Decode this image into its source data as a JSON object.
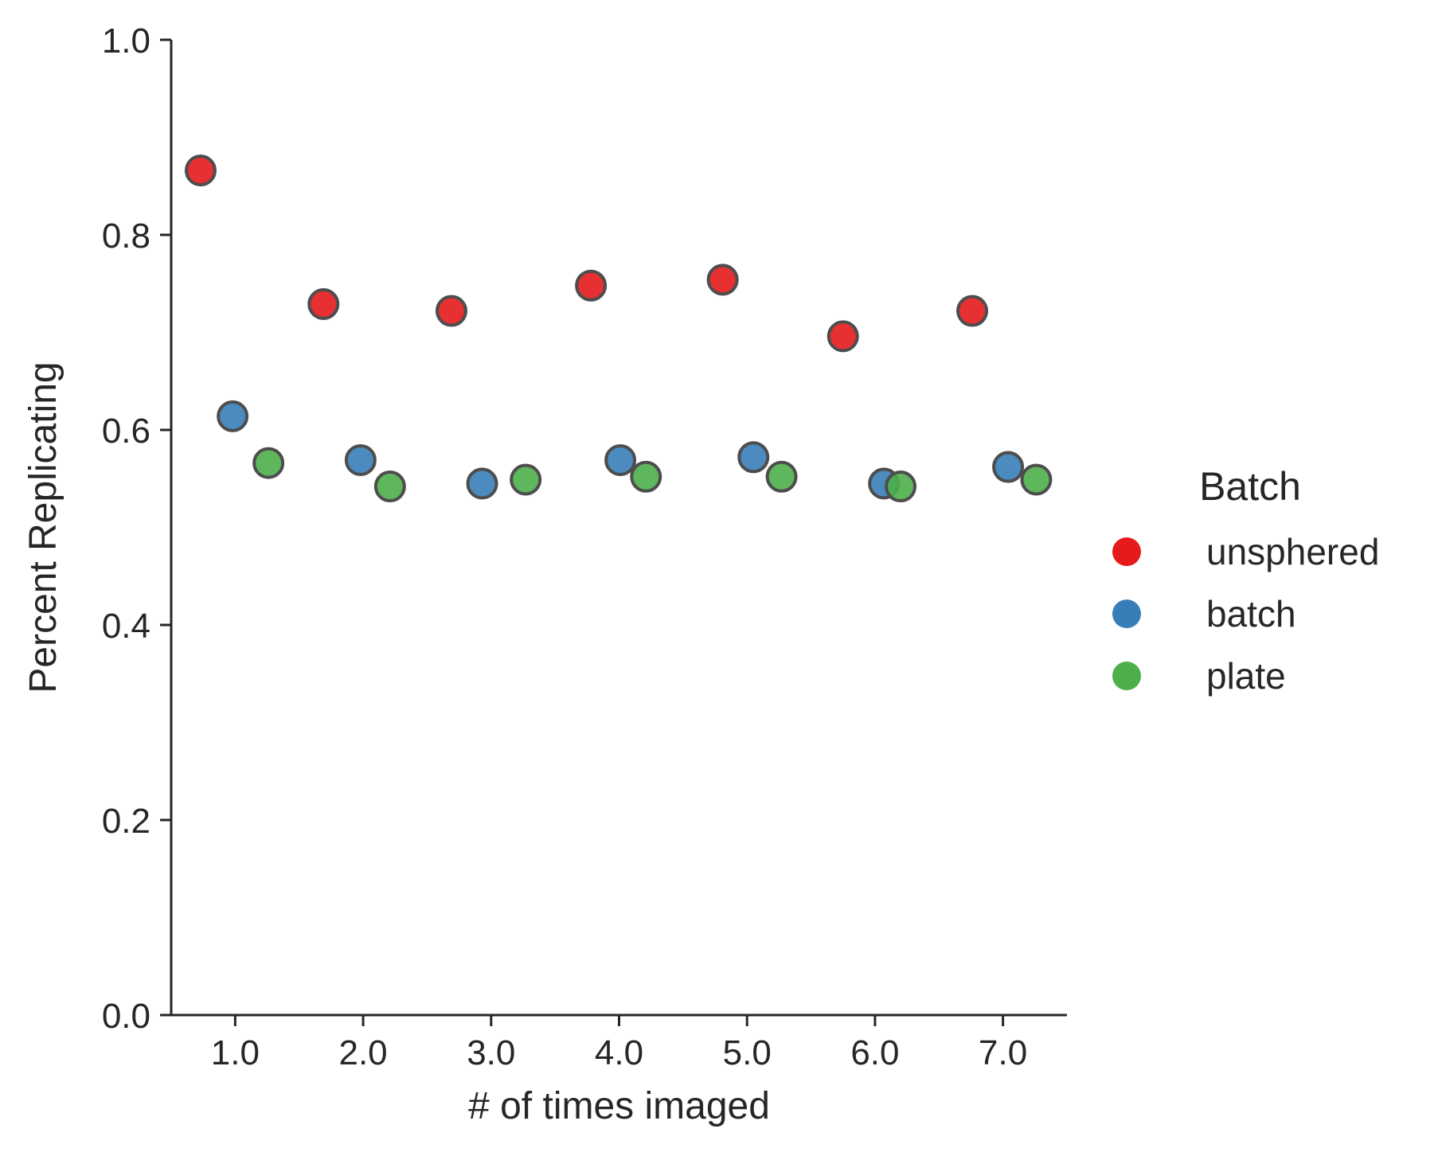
{
  "chart_data": {
    "type": "scatter",
    "title": "",
    "xlabel": "# of times imaged",
    "ylabel": "Percent Replicating",
    "xlim": [
      0.5,
      7.5
    ],
    "ylim": [
      0.0,
      1.0
    ],
    "xticks": [
      1.0,
      2.0,
      3.0,
      4.0,
      5.0,
      6.0,
      7.0
    ],
    "xtick_labels": [
      "1.0",
      "2.0",
      "3.0",
      "4.0",
      "5.0",
      "6.0",
      "7.0"
    ],
    "yticks": [
      0.0,
      0.2,
      0.4,
      0.6,
      0.8,
      1.0
    ],
    "ytick_labels": [
      "0.0",
      "0.2",
      "0.4",
      "0.6",
      "0.8",
      "1.0"
    ],
    "grid": false,
    "legend": {
      "title": "Batch",
      "placement": "right"
    },
    "series": [
      {
        "name": "unsphered",
        "color": "#e41a1c",
        "points": [
          {
            "x": 0.73,
            "y": 0.866
          },
          {
            "x": 1.69,
            "y": 0.729
          },
          {
            "x": 2.69,
            "y": 0.722
          },
          {
            "x": 3.78,
            "y": 0.748
          },
          {
            "x": 4.81,
            "y": 0.754
          },
          {
            "x": 5.75,
            "y": 0.696
          },
          {
            "x": 6.76,
            "y": 0.722
          }
        ]
      },
      {
        "name": "batch",
        "color": "#377eb8",
        "points": [
          {
            "x": 0.98,
            "y": 0.614
          },
          {
            "x": 1.98,
            "y": 0.569
          },
          {
            "x": 2.93,
            "y": 0.545
          },
          {
            "x": 4.01,
            "y": 0.569
          },
          {
            "x": 5.05,
            "y": 0.572
          },
          {
            "x": 6.07,
            "y": 0.545
          },
          {
            "x": 7.04,
            "y": 0.562
          }
        ]
      },
      {
        "name": "plate",
        "color": "#4daf4a",
        "points": [
          {
            "x": 1.26,
            "y": 0.566
          },
          {
            "x": 2.21,
            "y": 0.542
          },
          {
            "x": 3.27,
            "y": 0.549
          },
          {
            "x": 4.21,
            "y": 0.552
          },
          {
            "x": 5.27,
            "y": 0.552
          },
          {
            "x": 6.2,
            "y": 0.542
          },
          {
            "x": 7.26,
            "y": 0.549
          }
        ]
      }
    ]
  }
}
